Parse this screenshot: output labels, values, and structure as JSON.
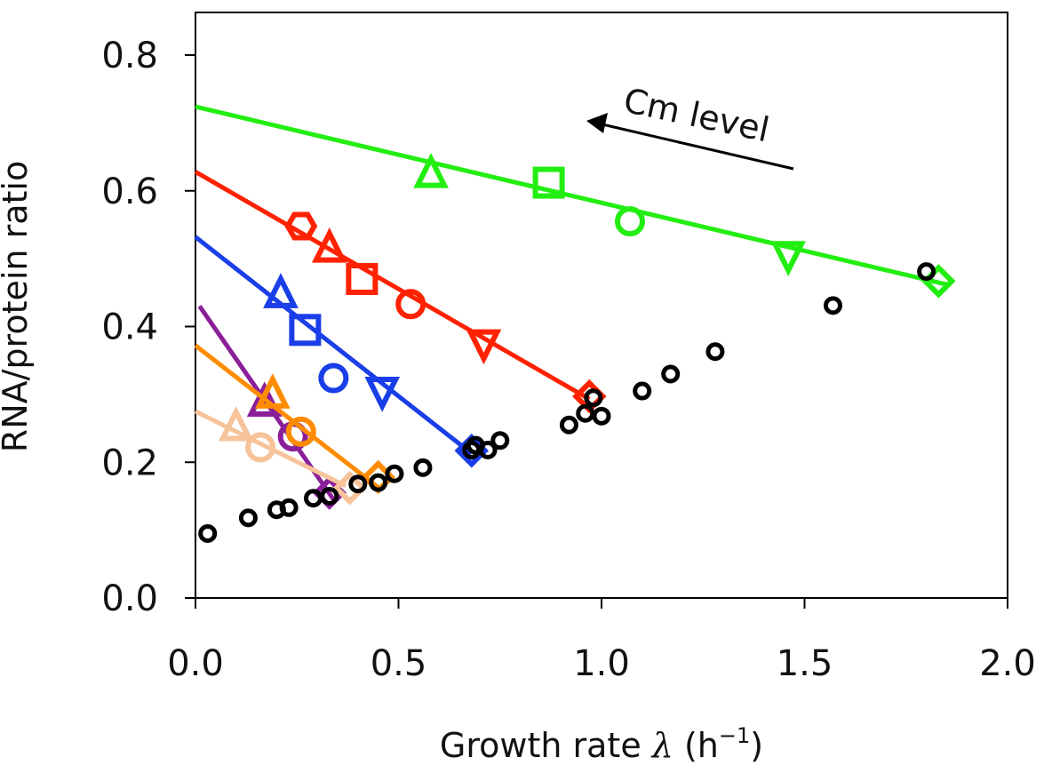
{
  "chart_data": {
    "type": "scatter",
    "xlabel_prefix": "Growth rate ",
    "xlabel_symbol": "λ",
    "xlabel_unit_open": " (h",
    "xlabel_unit_exp": "−1",
    "xlabel_unit_close": ")",
    "ylabel": "RNA/protein ratio",
    "xlim": [
      0.0,
      2.0
    ],
    "ylim": [
      0.0,
      0.8
    ],
    "x_ticks": [
      0.0,
      0.5,
      1.0,
      1.5,
      2.0
    ],
    "x_tick_labels": [
      "0.0",
      "0.5",
      "1.0",
      "1.5",
      "2.0"
    ],
    "y_ticks": [
      0.0,
      0.2,
      0.4,
      0.6,
      0.8
    ],
    "y_tick_labels": [
      "0.0",
      "0.2",
      "0.4",
      "0.6",
      "0.8"
    ],
    "annotation": {
      "text": "Cm level"
    },
    "reference_points": {
      "color": "#000000",
      "marker": "circle",
      "x": [
        0.03,
        0.13,
        0.2,
        0.23,
        0.29,
        0.33,
        0.4,
        0.45,
        0.49,
        0.56,
        0.68,
        0.69,
        0.72,
        0.75,
        0.92,
        0.96,
        0.98,
        1.0,
        1.1,
        1.17,
        1.28,
        1.57,
        1.8
      ],
      "y": [
        0.095,
        0.118,
        0.13,
        0.133,
        0.147,
        0.15,
        0.168,
        0.17,
        0.183,
        0.192,
        0.218,
        0.225,
        0.218,
        0.232,
        0.255,
        0.272,
        0.295,
        0.268,
        0.305,
        0.33,
        0.363,
        0.431,
        0.481
      ]
    },
    "series": [
      {
        "color": "#22ee11",
        "line_x": [
          0.0,
          1.85
        ],
        "line_y": [
          0.724,
          0.462
        ],
        "points": [
          {
            "x": 0.58,
            "y": 0.625,
            "marker": "triangle-up"
          },
          {
            "x": 0.87,
            "y": 0.612,
            "marker": "square"
          },
          {
            "x": 1.07,
            "y": 0.555,
            "marker": "circle"
          },
          {
            "x": 1.46,
            "y": 0.505,
            "marker": "triangle-down"
          },
          {
            "x": 1.83,
            "y": 0.467,
            "marker": "diamond"
          }
        ]
      },
      {
        "color": "#ff2200",
        "line_x": [
          0.0,
          0.97
        ],
        "line_y": [
          0.628,
          0.293
        ],
        "points": [
          {
            "x": 0.26,
            "y": 0.548,
            "marker": "hexagon"
          },
          {
            "x": 0.33,
            "y": 0.515,
            "marker": "triangle-up"
          },
          {
            "x": 0.41,
            "y": 0.47,
            "marker": "square"
          },
          {
            "x": 0.53,
            "y": 0.433,
            "marker": "circle"
          },
          {
            "x": 0.71,
            "y": 0.375,
            "marker": "triangle-down"
          },
          {
            "x": 0.97,
            "y": 0.297,
            "marker": "diamond"
          }
        ]
      },
      {
        "color": "#1a3ee8",
        "line_x": [
          0.0,
          0.68
        ],
        "line_y": [
          0.532,
          0.213
        ],
        "points": [
          {
            "x": 0.21,
            "y": 0.448,
            "marker": "triangle-up"
          },
          {
            "x": 0.27,
            "y": 0.395,
            "marker": "square"
          },
          {
            "x": 0.34,
            "y": 0.324,
            "marker": "circle"
          },
          {
            "x": 0.46,
            "y": 0.305,
            "marker": "triangle-down"
          },
          {
            "x": 0.68,
            "y": 0.217,
            "marker": "diamond"
          }
        ]
      },
      {
        "color": "#8b1f9a",
        "line_x": [
          0.01,
          0.34
        ],
        "line_y": [
          0.43,
          0.145
        ],
        "points": [
          {
            "x": 0.17,
            "y": 0.288,
            "marker": "triangle-up"
          },
          {
            "x": 0.24,
            "y": 0.238,
            "marker": "circle"
          },
          {
            "x": 0.33,
            "y": 0.155,
            "marker": "diamond"
          }
        ]
      },
      {
        "color": "#ff8c00",
        "line_x": [
          0.0,
          0.45
        ],
        "line_y": [
          0.372,
          0.163
        ],
        "points": [
          {
            "x": 0.19,
            "y": 0.3,
            "marker": "triangle-up"
          },
          {
            "x": 0.26,
            "y": 0.245,
            "marker": "circle"
          },
          {
            "x": 0.45,
            "y": 0.178,
            "marker": "diamond"
          }
        ]
      },
      {
        "color": "#f6c39a",
        "line_x": [
          0.0,
          0.37
        ],
        "line_y": [
          0.275,
          0.165
        ],
        "points": [
          {
            "x": 0.1,
            "y": 0.252,
            "marker": "triangle-up"
          },
          {
            "x": 0.16,
            "y": 0.222,
            "marker": "circle"
          },
          {
            "x": 0.38,
            "y": 0.162,
            "marker": "diamond"
          }
        ]
      }
    ]
  }
}
